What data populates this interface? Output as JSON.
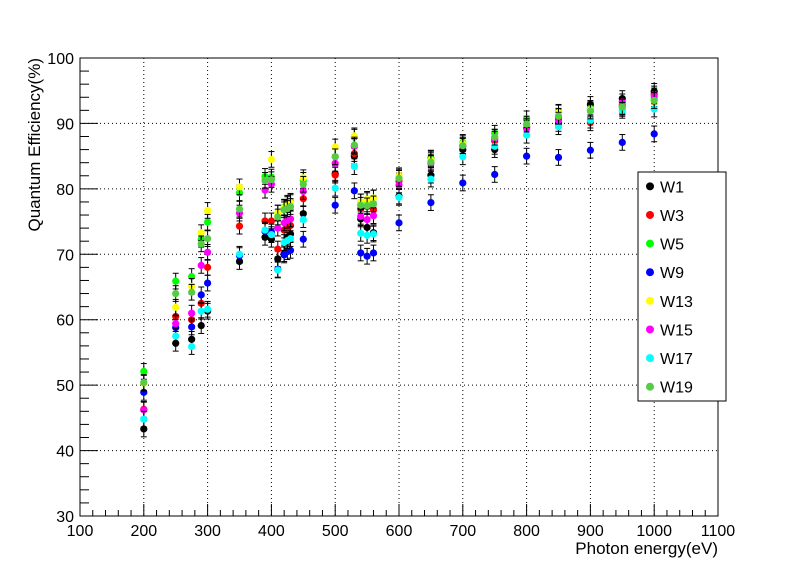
{
  "chart_data": {
    "type": "scatter",
    "title": "",
    "xlabel": "Photon energy(eV)",
    "ylabel": "Quantum Efficiency(%)",
    "xlim": [
      100,
      1100
    ],
    "ylim": [
      30,
      100
    ],
    "x_ticks": [
      "100",
      "200",
      "300",
      "400",
      "500",
      "600",
      "700",
      "800",
      "900",
      "1000",
      "1100"
    ],
    "y_ticks": [
      "30",
      "40",
      "50",
      "60",
      "70",
      "80",
      "90",
      "100"
    ],
    "grid": true,
    "error_bars": true,
    "legend_position": "right",
    "series": [
      {
        "name": "W1",
        "color": "#000000",
        "points": [
          [
            200,
            43.3
          ],
          [
            250,
            56.4
          ],
          [
            275,
            57.0
          ],
          [
            290,
            59.1
          ],
          [
            300,
            61.3
          ],
          [
            350,
            68.9
          ],
          [
            390,
            72.6
          ],
          [
            400,
            72.3
          ],
          [
            410,
            69.3
          ],
          [
            420,
            70.1
          ],
          [
            425,
            72.6
          ],
          [
            430,
            73.1
          ],
          [
            450,
            76.2
          ],
          [
            500,
            82.3
          ],
          [
            530,
            85.0
          ],
          [
            540,
            75.4
          ],
          [
            550,
            74.1
          ],
          [
            560,
            73.3
          ],
          [
            600,
            78.9
          ],
          [
            650,
            82.1
          ],
          [
            700,
            86.0
          ],
          [
            750,
            86.0
          ],
          [
            800,
            89.5
          ],
          [
            850,
            90.0
          ],
          [
            900,
            92.9
          ],
          [
            950,
            93.8
          ],
          [
            1000,
            94.9
          ]
        ]
      },
      {
        "name": "W3",
        "color": "#ff0000",
        "points": [
          [
            200,
            46.3
          ],
          [
            250,
            60.5
          ],
          [
            275,
            60.0
          ],
          [
            290,
            62.5
          ],
          [
            300,
            68.0
          ],
          [
            350,
            74.3
          ],
          [
            390,
            75.1
          ],
          [
            400,
            75.1
          ],
          [
            410,
            70.8
          ],
          [
            420,
            73.7
          ],
          [
            425,
            73.9
          ],
          [
            430,
            74.4
          ],
          [
            450,
            78.5
          ],
          [
            500,
            82.1
          ],
          [
            530,
            85.4
          ],
          [
            540,
            77.0
          ],
          [
            550,
            77.3
          ],
          [
            560,
            76.8
          ],
          [
            600,
            81.2
          ],
          [
            650,
            84.7
          ],
          [
            700,
            86.6
          ],
          [
            750,
            87.3
          ],
          [
            800,
            89.4
          ],
          [
            850,
            91.0
          ],
          [
            900,
            90.1
          ],
          [
            950,
            92.8
          ],
          [
            1000,
            94.5
          ]
        ]
      },
      {
        "name": "W5",
        "color": "#00ff00",
        "points": [
          [
            200,
            52.1
          ],
          [
            250,
            65.9
          ],
          [
            275,
            66.6
          ],
          [
            290,
            72.3
          ],
          [
            300,
            74.9
          ],
          [
            350,
            79.4
          ],
          [
            390,
            81.9
          ],
          [
            400,
            81.8
          ],
          [
            410,
            76.3
          ],
          [
            420,
            77.2
          ],
          [
            425,
            77.8
          ],
          [
            430,
            78.1
          ],
          [
            450,
            81.3
          ],
          [
            500,
            84.9
          ],
          [
            530,
            87.9
          ],
          [
            540,
            78.0
          ],
          [
            550,
            78.2
          ],
          [
            560,
            78.6
          ],
          [
            600,
            81.8
          ],
          [
            650,
            84.6
          ],
          [
            700,
            87.1
          ],
          [
            750,
            88.5
          ],
          [
            800,
            90.7
          ],
          [
            850,
            91.7
          ],
          [
            900,
            92.3
          ],
          [
            950,
            92.6
          ],
          [
            1000,
            93.8
          ]
        ]
      },
      {
        "name": "W9",
        "color": "#0000ff",
        "points": [
          [
            200,
            48.9
          ],
          [
            250,
            58.8
          ],
          [
            275,
            58.9
          ],
          [
            290,
            63.8
          ],
          [
            300,
            65.6
          ],
          [
            350,
            69.8
          ],
          [
            390,
            73.5
          ],
          [
            400,
            73.4
          ],
          [
            410,
            67.7
          ],
          [
            420,
            69.9
          ],
          [
            425,
            70.4
          ],
          [
            430,
            70.6
          ],
          [
            450,
            72.3
          ],
          [
            500,
            77.5
          ],
          [
            530,
            79.7
          ],
          [
            540,
            70.2
          ],
          [
            550,
            69.7
          ],
          [
            560,
            70.2
          ],
          [
            600,
            74.8
          ],
          [
            650,
            77.9
          ],
          [
            700,
            80.9
          ],
          [
            750,
            82.2
          ],
          [
            800,
            85.0
          ],
          [
            850,
            84.8
          ],
          [
            900,
            85.9
          ],
          [
            950,
            87.1
          ],
          [
            1000,
            88.4
          ]
        ]
      },
      {
        "name": "W13",
        "color": "#ffff00",
        "points": [
          [
            200,
            50.3
          ],
          [
            250,
            61.9
          ],
          [
            275,
            65.1
          ],
          [
            290,
            73.3
          ],
          [
            300,
            76.7
          ],
          [
            350,
            80.3
          ],
          [
            390,
            81.3
          ],
          [
            400,
            84.5
          ],
          [
            410,
            76.3
          ],
          [
            420,
            77.1
          ],
          [
            425,
            77.6
          ],
          [
            430,
            77.9
          ],
          [
            450,
            81.7
          ],
          [
            500,
            86.4
          ],
          [
            530,
            88.1
          ],
          [
            540,
            78.0
          ],
          [
            550,
            78.4
          ],
          [
            560,
            78.6
          ],
          [
            600,
            82.0
          ],
          [
            650,
            84.4
          ],
          [
            700,
            86.9
          ],
          [
            750,
            87.9
          ],
          [
            800,
            89.5
          ],
          [
            850,
            91.6
          ],
          [
            900,
            92.1
          ],
          [
            950,
            92.3
          ],
          [
            1000,
            93.3
          ]
        ]
      },
      {
        "name": "W15",
        "color": "#ff00ff",
        "points": [
          [
            200,
            46.2
          ],
          [
            250,
            59.4
          ],
          [
            275,
            61.0
          ],
          [
            290,
            68.3
          ],
          [
            300,
            70.3
          ],
          [
            350,
            76.3
          ],
          [
            390,
            79.8
          ],
          [
            400,
            80.7
          ],
          [
            410,
            74.0
          ],
          [
            420,
            74.8
          ],
          [
            425,
            75.2
          ],
          [
            430,
            75.4
          ],
          [
            450,
            79.6
          ],
          [
            500,
            83.9
          ],
          [
            530,
            86.5
          ],
          [
            540,
            75.8
          ],
          [
            550,
            75.3
          ],
          [
            560,
            75.9
          ],
          [
            600,
            80.6
          ],
          [
            650,
            83.9
          ],
          [
            700,
            86.5
          ],
          [
            750,
            87.6
          ],
          [
            800,
            89.2
          ],
          [
            850,
            90.5
          ],
          [
            900,
            91.9
          ],
          [
            950,
            93.3
          ],
          [
            1000,
            94.2
          ]
        ]
      },
      {
        "name": "W17",
        "color": "#00ffff",
        "points": [
          [
            200,
            44.8
          ],
          [
            250,
            57.5
          ],
          [
            275,
            55.9
          ],
          [
            290,
            61.3
          ],
          [
            300,
            61.6
          ],
          [
            350,
            70.0
          ],
          [
            390,
            73.7
          ],
          [
            400,
            73.0
          ],
          [
            410,
            67.6
          ],
          [
            420,
            71.8
          ],
          [
            425,
            72.1
          ],
          [
            430,
            72.4
          ],
          [
            450,
            75.3
          ],
          [
            500,
            80.1
          ],
          [
            530,
            83.4
          ],
          [
            540,
            73.2
          ],
          [
            550,
            72.9
          ],
          [
            560,
            73.1
          ],
          [
            600,
            78.7
          ],
          [
            650,
            81.5
          ],
          [
            700,
            84.9
          ],
          [
            750,
            86.5
          ],
          [
            800,
            88.2
          ],
          [
            850,
            89.5
          ],
          [
            900,
            90.5
          ],
          [
            950,
            92.0
          ],
          [
            1000,
            92.2
          ]
        ]
      },
      {
        "name": "W19",
        "color": "#55cc44",
        "points": [
          [
            200,
            50.4
          ],
          [
            250,
            64.0
          ],
          [
            275,
            64.2
          ],
          [
            290,
            71.6
          ],
          [
            300,
            72.4
          ],
          [
            350,
            76.9
          ],
          [
            390,
            81.3
          ],
          [
            400,
            81.4
          ],
          [
            410,
            75.7
          ],
          [
            420,
            76.8
          ],
          [
            425,
            77.0
          ],
          [
            430,
            77.3
          ],
          [
            450,
            80.7
          ],
          [
            500,
            84.9
          ],
          [
            530,
            86.7
          ],
          [
            540,
            77.5
          ],
          [
            550,
            77.4
          ],
          [
            560,
            77.7
          ],
          [
            600,
            81.6
          ],
          [
            650,
            84.1
          ],
          [
            700,
            86.6
          ],
          [
            750,
            87.9
          ],
          [
            800,
            89.9
          ],
          [
            850,
            91.1
          ],
          [
            900,
            91.9
          ],
          [
            950,
            92.5
          ],
          [
            1000,
            93.5
          ]
        ]
      }
    ]
  }
}
